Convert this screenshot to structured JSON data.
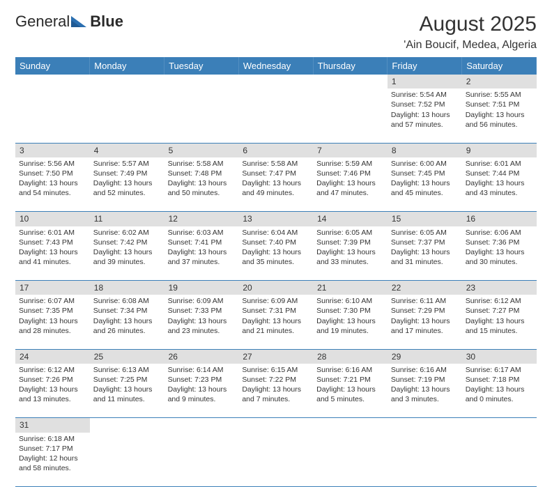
{
  "logo": {
    "part1": "General",
    "part2": "Blue"
  },
  "title": "August 2025",
  "location": "'Ain Boucif, Medea, Algeria",
  "colors": {
    "header_bg": "#3b7fb8",
    "header_text": "#ffffff",
    "daynum_bg": "#e0e0e0",
    "border": "#3b7fb8",
    "text": "#333333",
    "logo_icon": "#2b6fb0"
  },
  "weekdays": [
    "Sunday",
    "Monday",
    "Tuesday",
    "Wednesday",
    "Thursday",
    "Friday",
    "Saturday"
  ],
  "weeks": [
    [
      null,
      null,
      null,
      null,
      null,
      {
        "n": "1",
        "sr": "5:54 AM",
        "ss": "7:52 PM",
        "dh": "13",
        "dm": "57"
      },
      {
        "n": "2",
        "sr": "5:55 AM",
        "ss": "7:51 PM",
        "dh": "13",
        "dm": "56"
      }
    ],
    [
      {
        "n": "3",
        "sr": "5:56 AM",
        "ss": "7:50 PM",
        "dh": "13",
        "dm": "54"
      },
      {
        "n": "4",
        "sr": "5:57 AM",
        "ss": "7:49 PM",
        "dh": "13",
        "dm": "52"
      },
      {
        "n": "5",
        "sr": "5:58 AM",
        "ss": "7:48 PM",
        "dh": "13",
        "dm": "50"
      },
      {
        "n": "6",
        "sr": "5:58 AM",
        "ss": "7:47 PM",
        "dh": "13",
        "dm": "49"
      },
      {
        "n": "7",
        "sr": "5:59 AM",
        "ss": "7:46 PM",
        "dh": "13",
        "dm": "47"
      },
      {
        "n": "8",
        "sr": "6:00 AM",
        "ss": "7:45 PM",
        "dh": "13",
        "dm": "45"
      },
      {
        "n": "9",
        "sr": "6:01 AM",
        "ss": "7:44 PM",
        "dh": "13",
        "dm": "43"
      }
    ],
    [
      {
        "n": "10",
        "sr": "6:01 AM",
        "ss": "7:43 PM",
        "dh": "13",
        "dm": "41"
      },
      {
        "n": "11",
        "sr": "6:02 AM",
        "ss": "7:42 PM",
        "dh": "13",
        "dm": "39"
      },
      {
        "n": "12",
        "sr": "6:03 AM",
        "ss": "7:41 PM",
        "dh": "13",
        "dm": "37"
      },
      {
        "n": "13",
        "sr": "6:04 AM",
        "ss": "7:40 PM",
        "dh": "13",
        "dm": "35"
      },
      {
        "n": "14",
        "sr": "6:05 AM",
        "ss": "7:39 PM",
        "dh": "13",
        "dm": "33"
      },
      {
        "n": "15",
        "sr": "6:05 AM",
        "ss": "7:37 PM",
        "dh": "13",
        "dm": "31"
      },
      {
        "n": "16",
        "sr": "6:06 AM",
        "ss": "7:36 PM",
        "dh": "13",
        "dm": "30"
      }
    ],
    [
      {
        "n": "17",
        "sr": "6:07 AM",
        "ss": "7:35 PM",
        "dh": "13",
        "dm": "28"
      },
      {
        "n": "18",
        "sr": "6:08 AM",
        "ss": "7:34 PM",
        "dh": "13",
        "dm": "26"
      },
      {
        "n": "19",
        "sr": "6:09 AM",
        "ss": "7:33 PM",
        "dh": "13",
        "dm": "23"
      },
      {
        "n": "20",
        "sr": "6:09 AM",
        "ss": "7:31 PM",
        "dh": "13",
        "dm": "21"
      },
      {
        "n": "21",
        "sr": "6:10 AM",
        "ss": "7:30 PM",
        "dh": "13",
        "dm": "19"
      },
      {
        "n": "22",
        "sr": "6:11 AM",
        "ss": "7:29 PM",
        "dh": "13",
        "dm": "17"
      },
      {
        "n": "23",
        "sr": "6:12 AM",
        "ss": "7:27 PM",
        "dh": "13",
        "dm": "15"
      }
    ],
    [
      {
        "n": "24",
        "sr": "6:12 AM",
        "ss": "7:26 PM",
        "dh": "13",
        "dm": "13"
      },
      {
        "n": "25",
        "sr": "6:13 AM",
        "ss": "7:25 PM",
        "dh": "13",
        "dm": "11"
      },
      {
        "n": "26",
        "sr": "6:14 AM",
        "ss": "7:23 PM",
        "dh": "13",
        "dm": "9"
      },
      {
        "n": "27",
        "sr": "6:15 AM",
        "ss": "7:22 PM",
        "dh": "13",
        "dm": "7"
      },
      {
        "n": "28",
        "sr": "6:16 AM",
        "ss": "7:21 PM",
        "dh": "13",
        "dm": "5"
      },
      {
        "n": "29",
        "sr": "6:16 AM",
        "ss": "7:19 PM",
        "dh": "13",
        "dm": "3"
      },
      {
        "n": "30",
        "sr": "6:17 AM",
        "ss": "7:18 PM",
        "dh": "13",
        "dm": "0"
      }
    ],
    [
      {
        "n": "31",
        "sr": "6:18 AM",
        "ss": "7:17 PM",
        "dh": "12",
        "dm": "58"
      },
      null,
      null,
      null,
      null,
      null,
      null
    ]
  ],
  "labels": {
    "sunrise": "Sunrise:",
    "sunset": "Sunset:",
    "daylight": "Daylight:",
    "hours": "hours",
    "and": "and",
    "minutes": "minutes."
  }
}
